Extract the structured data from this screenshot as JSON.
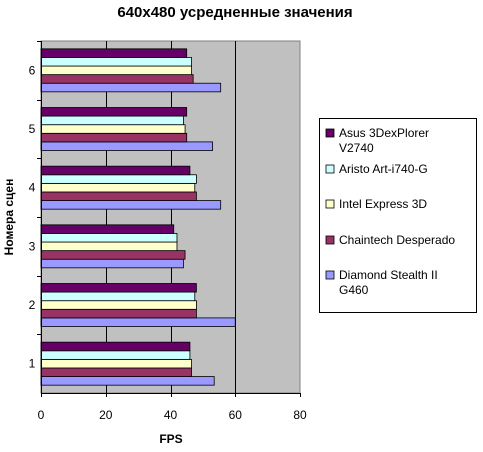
{
  "chart_data": {
    "type": "bar",
    "orientation": "horizontal",
    "title": "640x480 усредненные значения",
    "xlabel": "FPS",
    "ylabel": "Номера сцен",
    "xlim": [
      0,
      80
    ],
    "xticks": [
      0,
      20,
      40,
      60,
      80
    ],
    "categories": [
      "1",
      "2",
      "3",
      "4",
      "5",
      "6"
    ],
    "grid": "vertical",
    "legend_position": "right",
    "plot_background": "#c0c0c0",
    "series": [
      {
        "name": "Diamond Stealth II G460",
        "color": "#9999ff",
        "values": [
          53.5,
          60,
          44,
          55.5,
          53,
          55.5
        ]
      },
      {
        "name": "Chaintech Desperado",
        "color": "#993366",
        "values": [
          46.5,
          48,
          44.5,
          48,
          45,
          47
        ]
      },
      {
        "name": "Intel Express 3D",
        "color": "#ffffcc",
        "values": [
          46.5,
          48,
          42,
          47.5,
          44.5,
          46.5
        ]
      },
      {
        "name": "Aristo Art-i740-G",
        "color": "#ccffff",
        "values": [
          46,
          47.5,
          42,
          48,
          44,
          46.5
        ]
      },
      {
        "name": "Asus 3DexPlorer V2740",
        "color": "#660066",
        "values": [
          46,
          48,
          41,
          46,
          45,
          45
        ]
      }
    ],
    "legend_order": [
      [
        "Asus 3DexPlorer",
        "V2740"
      ],
      [
        "Aristo Art-i740-G"
      ],
      [
        "Intel Express 3D"
      ],
      [
        "Chaintech Desperado"
      ],
      [
        "Diamond Stealth II",
        "G460"
      ]
    ]
  }
}
